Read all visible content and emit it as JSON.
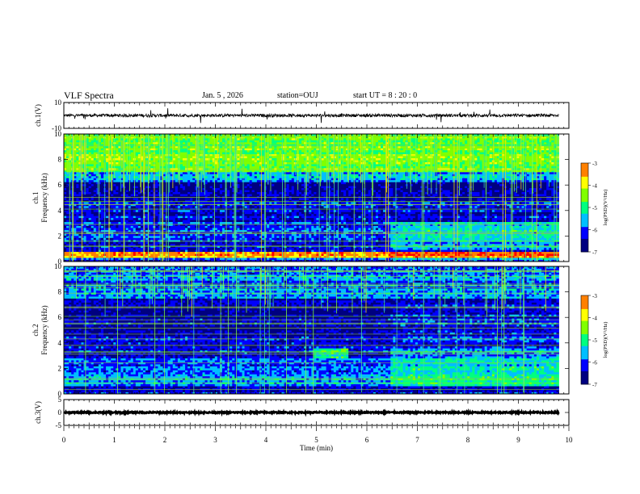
{
  "header": {
    "title": "VLF Spectra",
    "date": "Jan. 5 , 2026",
    "station": "station=OUJ",
    "start_ut": "start UT = 8 : 20 : 0"
  },
  "chart_data": [
    {
      "type": "line",
      "name": "ch1-waveform",
      "ylabel": "ch.1(V)",
      "ylim": [
        -10,
        10
      ],
      "yticks": [
        "10",
        "-10"
      ],
      "xlim": [
        0,
        10
      ],
      "baseline": 0,
      "noise_amplitude": 1.2,
      "grid": false
    },
    {
      "type": "heatmap",
      "name": "ch1-spectrogram",
      "ylabel_line1": "ch.1",
      "ylabel_line2": "Frequency (kHz)",
      "xlim": [
        0,
        10
      ],
      "data_end_min": 9.8,
      "ylim": [
        0,
        10
      ],
      "yticks": [
        "0",
        "2",
        "4",
        "6",
        "8",
        "10"
      ],
      "colorbar": {
        "label": "log(PSD)(V²/Hz)",
        "range": [
          -7,
          -3
        ],
        "ticks": [
          "-3",
          "-4",
          "-5",
          "-6",
          "-7"
        ],
        "colors": [
          "#000080",
          "#0000ff",
          "#00bfff",
          "#00ff80",
          "#80ff00",
          "#ffff00",
          "#ff8000",
          "#ff0000",
          "#ffffff"
        ]
      },
      "bands": [
        {
          "fmin": 0,
          "fmax": 0.3,
          "level": -6.0
        },
        {
          "fmin": 0.3,
          "fmax": 0.8,
          "level": -3.6
        },
        {
          "fmin": 0.8,
          "fmax": 1.6,
          "level": -6.2
        },
        {
          "fmin": 1.6,
          "fmax": 3.2,
          "level": -6.0
        },
        {
          "fmin": 3.2,
          "fmax": 4.8,
          "level": -6.3
        },
        {
          "fmin": 4.8,
          "fmax": 6.2,
          "level": -6.6
        },
        {
          "fmin": 6.2,
          "fmax": 7.0,
          "level": -5.6
        },
        {
          "fmin": 7.0,
          "fmax": 10.0,
          "level": -4.6
        }
      ]
    },
    {
      "type": "heatmap",
      "name": "ch2-spectrogram",
      "ylabel_line1": "ch.2",
      "ylabel_line2": "Frequency (kHz)",
      "xlim": [
        0,
        10
      ],
      "data_end_min": 9.8,
      "ylim": [
        0,
        10
      ],
      "yticks": [
        "0",
        "2",
        "4",
        "6",
        "8",
        "10"
      ],
      "colorbar": {
        "label": "log(PSD)(V²/Hz)",
        "range": [
          -7,
          -3
        ],
        "ticks": [
          "-3",
          "-4",
          "-5",
          "-6",
          "-7"
        ],
        "colors": [
          "#000080",
          "#0000ff",
          "#00bfff",
          "#00ff80",
          "#80ff00",
          "#ffff00",
          "#ff8000",
          "#ff0000",
          "#ffffff"
        ]
      },
      "bands": [
        {
          "fmin": 0,
          "fmax": 0.6,
          "level": -6.2
        },
        {
          "fmin": 0.6,
          "fmax": 1.6,
          "level": -5.6
        },
        {
          "fmin": 1.6,
          "fmax": 3.0,
          "level": -6.0
        },
        {
          "fmin": 3.0,
          "fmax": 4.5,
          "level": -6.3
        },
        {
          "fmin": 4.5,
          "fmax": 7.5,
          "level": -6.5
        },
        {
          "fmin": 7.5,
          "fmax": 10.0,
          "level": -5.8
        }
      ]
    },
    {
      "type": "line",
      "name": "ch3-waveform",
      "ylabel": "ch.3(V)",
      "ylim": [
        -5,
        5
      ],
      "yticks": [
        "5",
        "0",
        "-5"
      ],
      "xlim": [
        0,
        10
      ],
      "baseline": 0,
      "noise_amplitude": 0.25,
      "grid": false
    }
  ],
  "xaxis": {
    "label": "Time (min)",
    "ticks": [
      "0",
      "1",
      "2",
      "3",
      "4",
      "5",
      "6",
      "7",
      "8",
      "9",
      "10"
    ]
  }
}
